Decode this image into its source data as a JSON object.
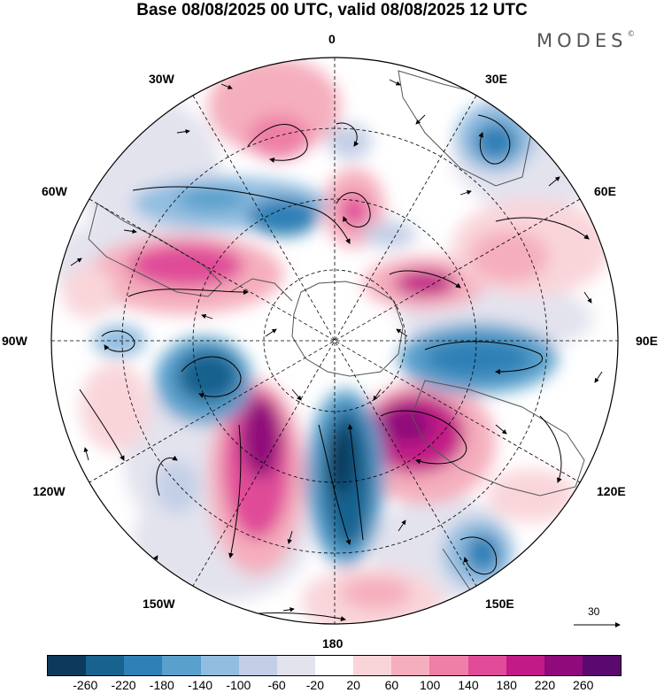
{
  "title": "Base 08/08/2025 00 UTC, valid 08/08/2025 12 UTC",
  "brand": {
    "name": "MODES",
    "mark": "©"
  },
  "longitude_labels": {
    "n": "0",
    "ne30": "30E",
    "ne60": "60E",
    "e": "90E",
    "se120": "120E",
    "se150": "150E",
    "s": "180",
    "sw150": "150W",
    "sw120": "120W",
    "w": "90W",
    "nw60": "60W",
    "nw30": "30W"
  },
  "wind_scale": {
    "label": "30"
  },
  "colorbar": {
    "colors": [
      "#0d3a5c",
      "#18628f",
      "#2f80b6",
      "#5aa0cc",
      "#92bde0",
      "#c3cfe6",
      "#e3e3ee",
      "#ffffff",
      "#f9d5da",
      "#f5aebd",
      "#ee7fa6",
      "#e04c98",
      "#c21a87",
      "#8f0a7a",
      "#5a0a6e"
    ],
    "ticks": [
      "-260",
      "-220",
      "-180",
      "-140",
      "-100",
      "-60",
      "-20",
      "20",
      "60",
      "100",
      "140",
      "180",
      "220",
      "260"
    ]
  }
}
